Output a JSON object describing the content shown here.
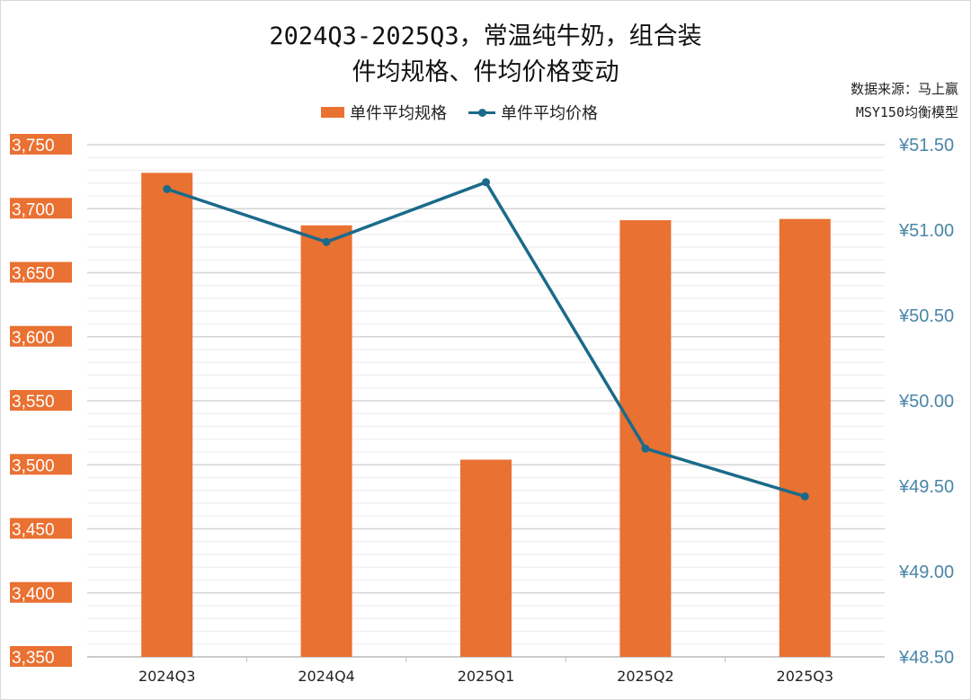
{
  "title_line1": "2024Q3-2025Q3，常温纯牛奶，组合装",
  "title_line2": "件均规格、件均价格变动",
  "source_line1": "数据来源：马上赢",
  "source_line2": "MSY150均衡模型",
  "colors": {
    "bar": "#E97132",
    "line": "#1B6A8A",
    "right_axis_text": "#4A86A8"
  },
  "chart_data": {
    "type": "bar+line",
    "categories": [
      "2024Q3",
      "2024Q4",
      "2025Q1",
      "2025Q2",
      "2025Q3"
    ],
    "series": [
      {
        "name": "单件平均规格",
        "type": "bar",
        "axis": "left",
        "values": [
          3728,
          3687,
          3504,
          3691,
          3692
        ]
      },
      {
        "name": "单件平均价格",
        "type": "line",
        "axis": "right",
        "values": [
          51.24,
          50.93,
          51.28,
          49.72,
          49.44
        ]
      }
    ],
    "left_axis": {
      "range": [
        3350,
        3750
      ],
      "ticks": [
        "3,350",
        "3,400",
        "3,450",
        "3,500",
        "3,550",
        "3,600",
        "3,650",
        "3,700",
        "3,750"
      ]
    },
    "right_axis": {
      "range": [
        48.5,
        51.5
      ],
      "ticks": [
        "¥48.50",
        "¥49.00",
        "¥49.50",
        "¥50.00",
        "¥50.50",
        "¥51.00",
        "¥51.50"
      ]
    },
    "grid": true,
    "legend_position": "top"
  }
}
